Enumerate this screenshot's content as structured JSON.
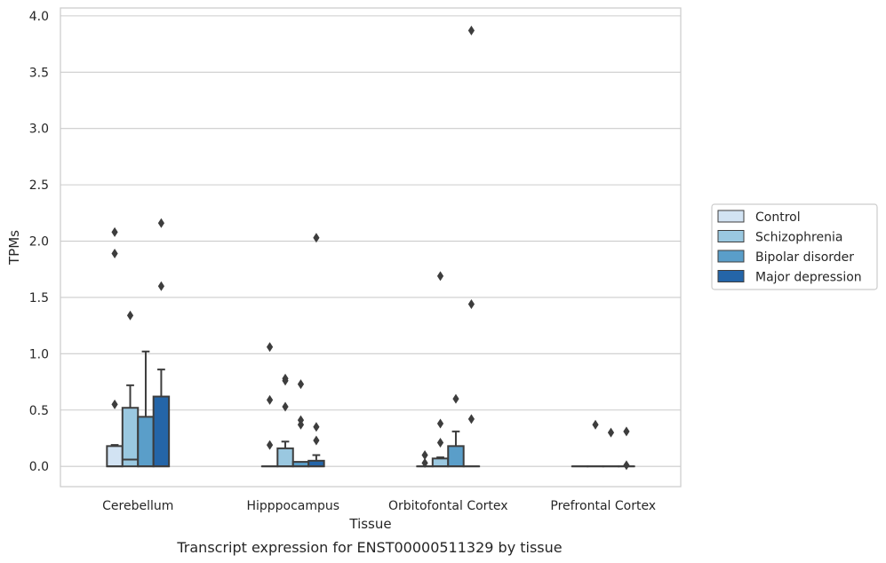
{
  "caption": "Transcript expression for ENST00000511329 by tissue",
  "chart_data": {
    "type": "boxplot",
    "xlabel": "Tissue",
    "ylabel": "TPMs",
    "ylim": [
      -0.18,
      4.07
    ],
    "yticks": [
      0.0,
      0.5,
      1.0,
      1.5,
      2.0,
      2.5,
      3.0,
      3.5,
      4.0
    ],
    "ytick_labels": [
      "0.0",
      "0.5",
      "1.0",
      "1.5",
      "2.0",
      "2.5",
      "3.0",
      "3.5",
      "4.0"
    ],
    "grid": "horizontal",
    "legend_position": "right",
    "categories": [
      "Cerebellum",
      "Hipppocampus",
      "Orbitofontal Cortex",
      "Prefrontal Cortex"
    ],
    "series": [
      {
        "name": "Control",
        "color": "#d2e3f3",
        "boxes": [
          {
            "q1": 0.0,
            "median": 0.0,
            "q3": 0.18,
            "whisker_low": 0.0,
            "whisker_high": 0.19,
            "outliers": [
              0.55,
              1.89,
              2.08
            ]
          },
          {
            "q1": 0.0,
            "median": 0.0,
            "q3": 0.0,
            "whisker_low": 0.0,
            "whisker_high": 0.0,
            "outliers": [
              0.19,
              0.59,
              1.06
            ]
          },
          {
            "q1": 0.0,
            "median": 0.0,
            "q3": 0.0,
            "whisker_low": 0.0,
            "whisker_high": 0.0,
            "outliers": [
              0.03,
              0.1
            ]
          },
          {
            "q1": 0.0,
            "median": 0.0,
            "q3": 0.0,
            "whisker_low": 0.0,
            "whisker_high": 0.0,
            "outliers": []
          }
        ]
      },
      {
        "name": "Schizophrenia",
        "color": "#9ac8e0",
        "boxes": [
          {
            "q1": 0.0,
            "median": 0.06,
            "q3": 0.52,
            "whisker_low": 0.0,
            "whisker_high": 0.72,
            "outliers": [
              1.34
            ]
          },
          {
            "q1": 0.0,
            "median": 0.0,
            "q3": 0.16,
            "whisker_low": 0.0,
            "whisker_high": 0.22,
            "outliers": [
              0.53,
              0.76,
              0.78
            ]
          },
          {
            "q1": 0.0,
            "median": 0.0,
            "q3": 0.07,
            "whisker_low": 0.0,
            "whisker_high": 0.08,
            "outliers": [
              0.21,
              0.38,
              1.69
            ]
          },
          {
            "q1": 0.0,
            "median": 0.0,
            "q3": 0.0,
            "whisker_low": 0.0,
            "whisker_high": 0.0,
            "outliers": [
              0.37
            ]
          }
        ]
      },
      {
        "name": "Bipolar disorder",
        "color": "#5a9ec9",
        "boxes": [
          {
            "q1": 0.0,
            "median": 0.0,
            "q3": 0.44,
            "whisker_low": 0.0,
            "whisker_high": 1.02,
            "outliers": []
          },
          {
            "q1": 0.0,
            "median": 0.0,
            "q3": 0.04,
            "whisker_low": 0.0,
            "whisker_high": 0.04,
            "outliers": [
              0.37,
              0.41,
              0.73
            ]
          },
          {
            "q1": 0.0,
            "median": 0.0,
            "q3": 0.18,
            "whisker_low": 0.0,
            "whisker_high": 0.31,
            "outliers": [
              0.6
            ]
          },
          {
            "q1": 0.0,
            "median": 0.0,
            "q3": 0.0,
            "whisker_low": 0.0,
            "whisker_high": 0.0,
            "outliers": [
              0.3
            ]
          }
        ]
      },
      {
        "name": "Major depression",
        "color": "#2465a8",
        "boxes": [
          {
            "q1": 0.0,
            "median": 0.0,
            "q3": 0.62,
            "whisker_low": 0.0,
            "whisker_high": 0.86,
            "outliers": [
              1.6,
              2.16
            ]
          },
          {
            "q1": 0.0,
            "median": 0.0,
            "q3": 0.05,
            "whisker_low": 0.0,
            "whisker_high": 0.1,
            "outliers": [
              0.23,
              0.35,
              2.03
            ]
          },
          {
            "q1": 0.0,
            "median": 0.0,
            "q3": 0.0,
            "whisker_low": 0.0,
            "whisker_high": 0.0,
            "outliers": [
              0.42,
              1.44,
              3.87
            ]
          },
          {
            "q1": 0.0,
            "median": 0.0,
            "q3": 0.0,
            "whisker_low": 0.0,
            "whisker_high": 0.0,
            "outliers": [
              0.01,
              0.31
            ]
          }
        ]
      }
    ]
  }
}
